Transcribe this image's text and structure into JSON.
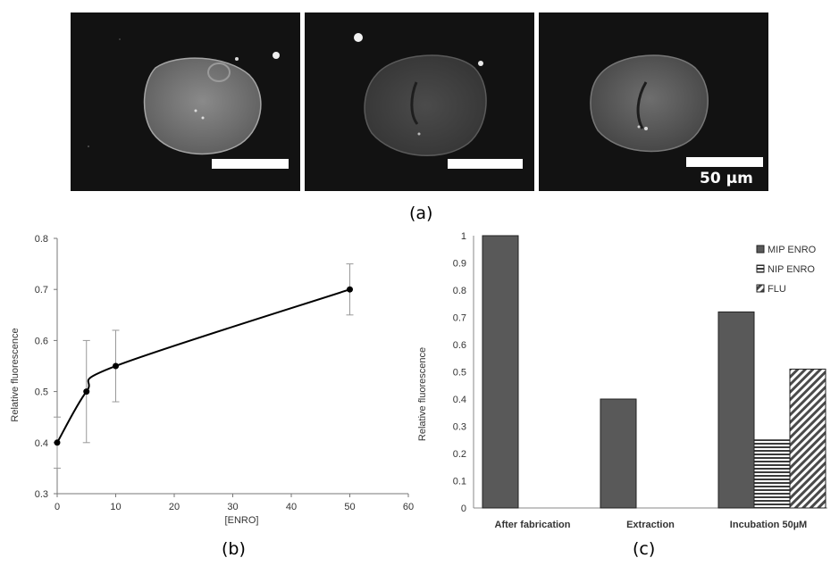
{
  "captions": {
    "a": "(a)",
    "b": "(b)",
    "c": "(c)"
  },
  "micrographs": [
    {
      "id": "panel-1"
    },
    {
      "id": "panel-2"
    },
    {
      "id": "panel-3",
      "scale_label": "50 µm"
    }
  ],
  "chart_data": [
    {
      "type": "line",
      "title": "",
      "xlabel": "[ENRO]",
      "ylabel": "Relative fluorescence",
      "xlim": [
        0,
        60
      ],
      "ylim": [
        0.3,
        0.8
      ],
      "x_ticks": [
        0,
        10,
        20,
        30,
        40,
        50,
        60
      ],
      "y_ticks": [
        0.3,
        0.4,
        0.5,
        0.6,
        0.7,
        0.8
      ],
      "x_tick_labels": [
        "0",
        "10",
        "20",
        "30",
        "40",
        "50",
        "60"
      ],
      "y_tick_labels": [
        "0.3",
        "0.4",
        "0.5",
        "0.6",
        "0.7",
        "0.8"
      ],
      "grid": false,
      "series": [
        {
          "x": [
            0,
            5,
            10,
            50
          ],
          "y": [
            0.4,
            0.5,
            0.55,
            0.7
          ],
          "error": [
            0.05,
            0.1,
            0.07,
            0.05
          ]
        }
      ]
    },
    {
      "type": "bar",
      "title": "",
      "xlabel": "",
      "ylabel": "Relative fluorescence",
      "categories": [
        "After fabrication",
        "Extraction",
        "Incubation 50µM"
      ],
      "ylim": [
        0,
        1
      ],
      "y_ticks": [
        0,
        0.1,
        0.2,
        0.3,
        0.4,
        0.5,
        0.6,
        0.7,
        0.8,
        0.9,
        1
      ],
      "y_tick_labels": [
        "0",
        "0.1",
        "0.2",
        "0.3",
        "0.4",
        "0.5",
        "0.6",
        "0.7",
        "0.8",
        "0.9",
        "1"
      ],
      "legend_position": "top-right",
      "series": [
        {
          "name": "MIP ENRO",
          "values": [
            1.0,
            0.4,
            0.72
          ],
          "fill": "solid",
          "color": "#595959"
        },
        {
          "name": "NIP ENRO",
          "values": [
            null,
            null,
            0.25
          ],
          "fill": "horizontal-lines",
          "color": "#3a3a3a"
        },
        {
          "name": "FLU",
          "values": [
            null,
            null,
            0.51
          ],
          "fill": "diagonal-lines",
          "color": "#4a4a4a"
        }
      ]
    }
  ]
}
